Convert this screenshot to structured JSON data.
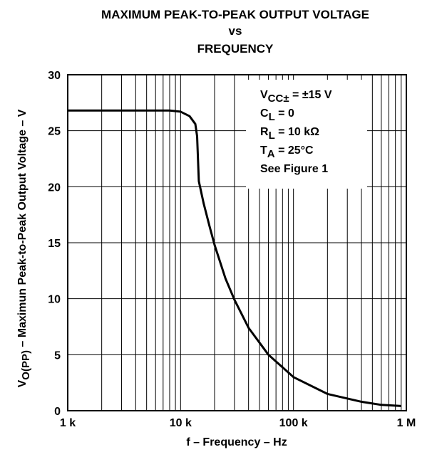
{
  "chart_data": {
    "type": "line",
    "title": [
      "MAXIMUM PEAK-TO-PEAK OUTPUT VOLTAGE",
      "vs",
      "FREQUENCY"
    ],
    "x_label": "f – Frequency – Hz",
    "y_label": {
      "main": "V",
      "sub": "O(PP)",
      "rest": " – Maximun Peak-to-Peak Output Voltage – V"
    },
    "annotation": [
      {
        "main": "V",
        "sub": "CC±",
        "rest": " = ±15 V"
      },
      {
        "main": "C",
        "sub": "L",
        "rest": " = 0"
      },
      {
        "main": "R",
        "sub": "L",
        "rest": " = 10 kΩ"
      },
      {
        "main": "T",
        "sub": "A",
        "rest": " = 25°C"
      },
      {
        "main": "See Figure 1"
      }
    ],
    "x": [
      1000,
      5000,
      8000,
      10000,
      12000,
      13500,
      14000,
      14500,
      16000,
      18000,
      20000,
      25000,
      30000,
      40000,
      60000,
      100000,
      200000,
      400000,
      600000,
      900000
    ],
    "values": [
      26.8,
      26.8,
      26.8,
      26.7,
      26.3,
      25.6,
      24.5,
      20.5,
      18.5,
      16.5,
      14.8,
      11.8,
      9.9,
      7.4,
      5.0,
      3.0,
      1.5,
      0.8,
      0.52,
      0.42
    ],
    "color": "#000000",
    "xscale": "log",
    "xlim": [
      1000,
      1000000
    ],
    "xticks": [
      {
        "value": 1000,
        "label": "1 k"
      },
      {
        "value": 10000,
        "label": "10 k"
      },
      {
        "value": 100000,
        "label": "100 k"
      },
      {
        "value": 1000000,
        "label": "1 M"
      }
    ],
    "ylim": [
      0,
      30
    ],
    "yticks": [
      0,
      5,
      10,
      15,
      20,
      25,
      30
    ],
    "grid": true
  }
}
